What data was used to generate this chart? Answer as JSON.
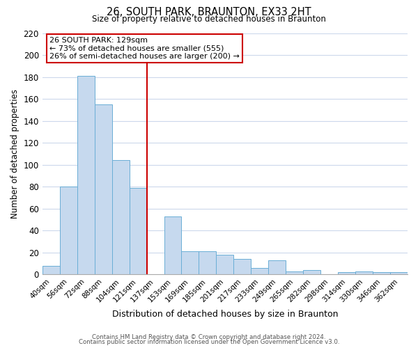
{
  "title": "26, SOUTH PARK, BRAUNTON, EX33 2HT",
  "subtitle": "Size of property relative to detached houses in Braunton",
  "xlabel": "Distribution of detached houses by size in Braunton",
  "ylabel": "Number of detached properties",
  "footnote1": "Contains HM Land Registry data © Crown copyright and database right 2024.",
  "footnote2": "Contains public sector information licensed under the Open Government Licence v3.0.",
  "bar_labels": [
    "40sqm",
    "56sqm",
    "72sqm",
    "88sqm",
    "104sqm",
    "121sqm",
    "137sqm",
    "153sqm",
    "169sqm",
    "185sqm",
    "201sqm",
    "217sqm",
    "233sqm",
    "249sqm",
    "265sqm",
    "282sqm",
    "298sqm",
    "314sqm",
    "330sqm",
    "346sqm",
    "362sqm"
  ],
  "bar_values": [
    8,
    80,
    181,
    155,
    104,
    79,
    0,
    53,
    21,
    21,
    18,
    14,
    6,
    13,
    3,
    4,
    0,
    2,
    3,
    2,
    2
  ],
  "bar_color": "#c6d9ee",
  "bar_edge_color": "#6aaed6",
  "vline_x_index": 6,
  "vline_color": "#cc0000",
  "annotation_text": "26 SOUTH PARK: 129sqm\n← 73% of detached houses are smaller (555)\n26% of semi-detached houses are larger (200) →",
  "annotation_box_color": "#cc0000",
  "ylim": [
    0,
    220
  ],
  "yticks": [
    0,
    20,
    40,
    60,
    80,
    100,
    120,
    140,
    160,
    180,
    200,
    220
  ],
  "background_color": "#ffffff",
  "grid_color": "#ccd8ec"
}
